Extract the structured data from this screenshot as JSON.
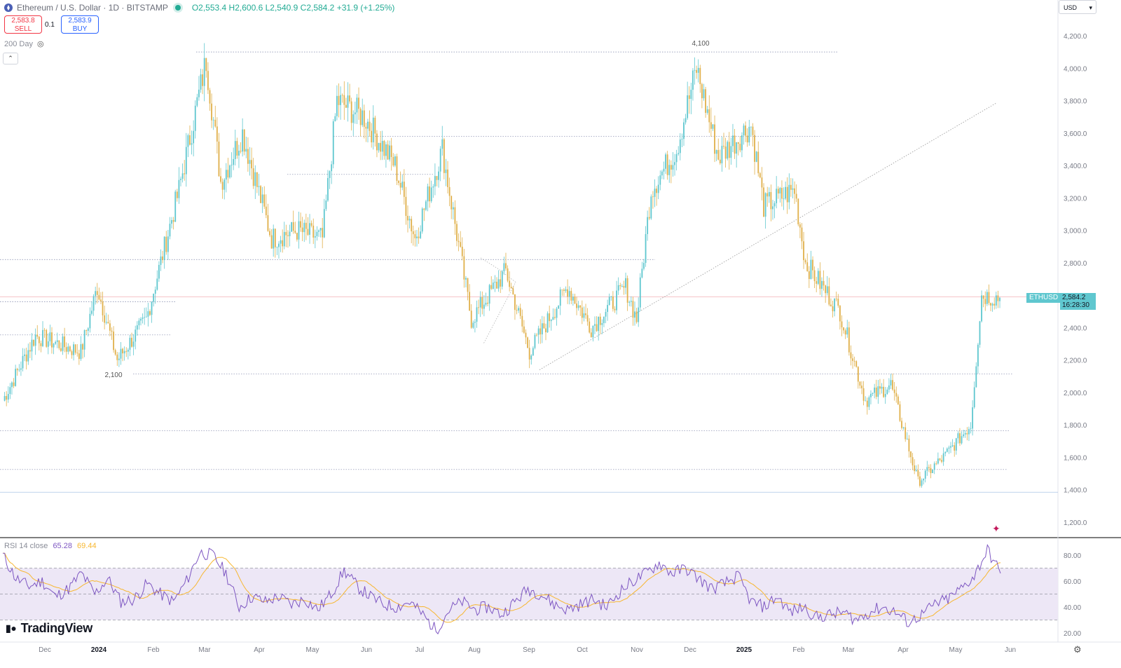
{
  "header": {
    "title": "Ethereum / U.S. Dollar · 1D · BITSTAMP",
    "open": "O2,553.4",
    "high": "H2,600.6",
    "low": "L2,540.9",
    "close": "C2,584.2",
    "change": "+31.9 (+1.25%)"
  },
  "trade": {
    "sell_price": "2,583.8",
    "sell_label": "SELL",
    "spread": "0.1",
    "buy_price": "2,583.9",
    "buy_label": "BUY"
  },
  "indicator_label": "200 Day",
  "currency": "USD",
  "symbol_tag": "ETHUSD",
  "last_price": "2,584.2",
  "countdown": "16:28:30",
  "rsi": {
    "label": "RSI 14 close",
    "value": "65.28",
    "ma_value": "69.44"
  },
  "brand": "TradingView",
  "colors": {
    "up": "#5fc7cf",
    "down": "#e0b04b",
    "rsi_line": "#7e57c2",
    "rsi_ma": "#f7b731",
    "rsi_band": "#ede7f6"
  },
  "chart_data": [
    {
      "type": "candlestick",
      "ylim": [
        1150,
        4300
      ],
      "y_ticks": [
        "4,200.0",
        "4,000.0",
        "3,800.0",
        "3,600.0",
        "3,400.0",
        "3,200.0",
        "3,000.0",
        "2,800.0",
        "2,600.0",
        "2,400.0",
        "2,200.0",
        "2,000.0",
        "1,800.0",
        "1,600.0",
        "1,400.0",
        "1,200.0"
      ],
      "x_ticks": [
        "Dec",
        "2024",
        "Feb",
        "Mar",
        "Apr",
        "May",
        "Jun",
        "Jul",
        "Aug",
        "Sep",
        "Oct",
        "Nov",
        "Dec",
        "2025",
        "Feb",
        "Mar",
        "Apr",
        "May",
        "Jun"
      ],
      "annotations": [
        "4,100",
        "2,100"
      ],
      "price_anchors": [
        {
          "date": "2023-11-21",
          "price": 1950
        },
        {
          "date": "2023-12-09",
          "price": 2350
        },
        {
          "date": "2024-01-03",
          "price": 2250
        },
        {
          "date": "2024-01-12",
          "price": 2650
        },
        {
          "date": "2024-01-23",
          "price": 2200
        },
        {
          "date": "2024-02-08",
          "price": 2450
        },
        {
          "date": "2024-02-26",
          "price": 3250
        },
        {
          "date": "2024-03-12",
          "price": 4050
        },
        {
          "date": "2024-03-20",
          "price": 3300
        },
        {
          "date": "2024-04-01",
          "price": 3600
        },
        {
          "date": "2024-04-17",
          "price": 2950
        },
        {
          "date": "2024-05-01",
          "price": 3000
        },
        {
          "date": "2024-05-15",
          "price": 2950
        },
        {
          "date": "2024-05-23",
          "price": 3800
        },
        {
          "date": "2024-06-07",
          "price": 3700
        },
        {
          "date": "2024-06-24",
          "price": 3400
        },
        {
          "date": "2024-07-05",
          "price": 2950
        },
        {
          "date": "2024-07-20",
          "price": 3500
        },
        {
          "date": "2024-08-05",
          "price": 2450
        },
        {
          "date": "2024-08-24",
          "price": 2750
        },
        {
          "date": "2024-09-06",
          "price": 2250
        },
        {
          "date": "2024-09-27",
          "price": 2650
        },
        {
          "date": "2024-10-10",
          "price": 2400
        },
        {
          "date": "2024-10-29",
          "price": 2650
        },
        {
          "date": "2024-11-04",
          "price": 2450
        },
        {
          "date": "2024-11-12",
          "price": 3250
        },
        {
          "date": "2024-11-26",
          "price": 3500
        },
        {
          "date": "2024-12-07",
          "price": 4000
        },
        {
          "date": "2024-12-19",
          "price": 3450
        },
        {
          "date": "2025-01-06",
          "price": 3650
        },
        {
          "date": "2025-01-13",
          "price": 3150
        },
        {
          "date": "2025-01-30",
          "price": 3250
        },
        {
          "date": "2025-02-05",
          "price": 2800
        },
        {
          "date": "2025-02-24",
          "price": 2500
        },
        {
          "date": "2025-03-10",
          "price": 1950
        },
        {
          "date": "2025-03-24",
          "price": 2050
        },
        {
          "date": "2025-04-08",
          "price": 1450
        },
        {
          "date": "2025-04-22",
          "price": 1600
        },
        {
          "date": "2025-05-07",
          "price": 1800
        },
        {
          "date": "2025-05-13",
          "price": 2600
        },
        {
          "date": "2025-05-23",
          "price": 2584
        }
      ]
    },
    {
      "type": "line",
      "title": "RSI 14 close",
      "ylim": [
        15,
        92
      ],
      "y_ticks": [
        "80.00",
        "60.00",
        "40.00",
        "20.00"
      ],
      "bands": [
        70,
        50,
        30
      ],
      "series": [
        {
          "name": "RSI",
          "values": [
            80,
            62,
            56,
            60,
            48,
            54,
            66,
            50,
            62,
            44,
            46,
            58,
            50,
            44,
            60,
            82,
            80,
            66,
            40,
            48,
            44,
            48,
            42,
            46,
            38,
            50,
            68,
            56,
            48,
            42,
            40,
            44,
            34,
            22,
            38,
            44,
            38,
            40,
            34,
            44,
            54,
            50,
            42,
            38,
            42,
            46,
            40,
            52,
            60,
            66,
            74,
            66,
            70,
            62,
            54,
            58,
            64,
            44,
            40,
            48,
            36,
            40,
            32,
            34,
            36,
            30,
            36,
            40,
            36,
            28,
            34,
            42,
            46,
            54,
            64,
            84,
            66
          ]
        }
      ]
    }
  ]
}
